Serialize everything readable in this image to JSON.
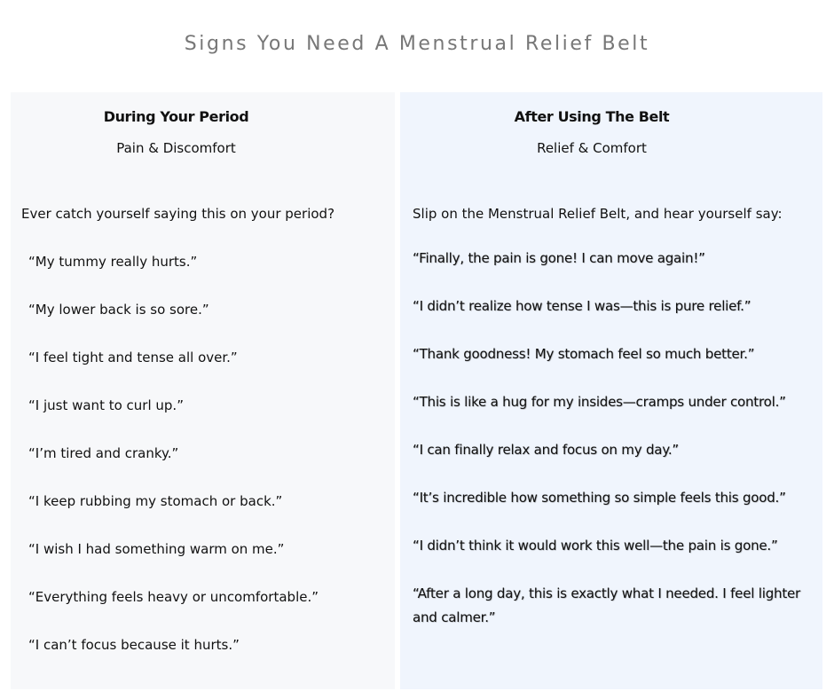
{
  "title": "Signs You Need A Menstrual Relief Belt",
  "left": {
    "heading": "During Your Period",
    "subheading": "Pain & Discomfort",
    "intro": "Ever catch yourself saying this on your period?",
    "quotes": [
      "“My tummy really hurts.”",
      "“My lower back is so sore.”",
      "“I feel tight and tense all over.”",
      "“I just want to curl up.”",
      "“I’m tired and cranky.”",
      "“I keep rubbing my stomach or back.”",
      "“I wish I had something warm on me.”",
      "“Everything feels heavy or uncomfortable.”",
      "“I can’t focus because it hurts.”"
    ]
  },
  "right": {
    "heading": "After Using The Belt",
    "subheading": "Relief & Comfort",
    "intro": "Slip on the Menstrual Relief Belt,  and hear yourself say:",
    "quotes": [
      "“Finally, the pain is gone! I can move again!”",
      "“I didn’t realize how tense I was—this is pure relief.”",
      "“Thank goodness! My stomach feel so much better.”",
      "“This  is like a hug for my insides—cramps under control.”",
      "“I can finally relax and focus on my day.”",
      "“It’s incredible how something so simple feels this good.”",
      "“I didn’t think it would work this well—the pain is gone.”",
      "“After a long day, this is exactly what I needed. I feel lighter and calmer.”"
    ]
  },
  "colors": {
    "left_bg": "#f7f8fa",
    "right_bg": "#f0f5fd",
    "title": "#777777"
  }
}
